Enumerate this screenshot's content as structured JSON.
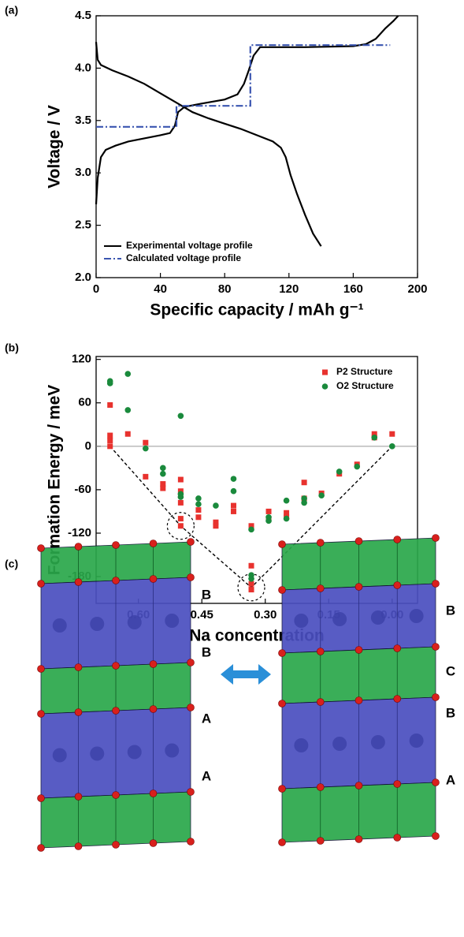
{
  "chart_data": [
    {
      "type": "line",
      "panel_label": "(a)",
      "x_label": "Specific capacity / mAh g⁻¹",
      "y_label": "Voltage / V",
      "xlim": [
        0,
        200
      ],
      "ylim": [
        2.0,
        4.5
      ],
      "xticks": [
        0,
        40,
        80,
        120,
        160,
        200
      ],
      "yticks": [
        {
          "value": 2.0,
          "label": "2.0"
        },
        2.5,
        {
          "value": 3.0,
          "label": "3.0"
        },
        3.5,
        {
          "value": 4.0,
          "label": "4.0"
        },
        4.5
      ],
      "legend": "lower left",
      "series": [
        {
          "name": "Experimental voltage profile",
          "color": "#000000",
          "linestyle": "solid",
          "x": [
            0,
            1,
            3,
            6,
            12,
            20,
            30,
            40,
            46,
            49,
            51,
            55,
            65,
            80,
            88,
            92,
            95,
            98,
            102,
            130,
            160,
            168,
            174,
            180,
            185,
            188,
            null,
            0,
            1,
            3,
            10,
            20,
            30,
            40,
            50,
            60,
            70,
            80,
            90,
            100,
            110,
            115,
            118,
            121,
            125,
            130,
            135,
            140
          ],
          "values": [
            2.7,
            2.95,
            3.15,
            3.22,
            3.26,
            3.3,
            3.33,
            3.36,
            3.38,
            3.45,
            3.58,
            3.63,
            3.66,
            3.7,
            3.75,
            3.85,
            3.98,
            4.12,
            4.2,
            4.2,
            4.21,
            4.23,
            4.28,
            4.38,
            4.45,
            4.5,
            null,
            4.25,
            4.08,
            4.03,
            3.98,
            3.92,
            3.85,
            3.76,
            3.67,
            3.58,
            3.52,
            3.47,
            3.42,
            3.36,
            3.3,
            3.24,
            3.15,
            2.98,
            2.8,
            2.6,
            2.42,
            2.3
          ]
        },
        {
          "name": "Calculated voltage profile",
          "color": "#3a55b0",
          "linestyle": "dashdot",
          "x": [
            0,
            50,
            50,
            96,
            96,
            183
          ],
          "values": [
            3.44,
            3.44,
            3.64,
            3.64,
            4.22,
            4.22
          ]
        }
      ]
    },
    {
      "type": "scatter",
      "panel_label": "(b)",
      "x_label": "Na concentration",
      "y_label": "Formation Energy / meV",
      "xlim": [
        0.7,
        -0.06
      ],
      "ylim": [
        -217,
        124
      ],
      "xticks": [
        {
          "value": 0.6,
          "label": "0.60"
        },
        0.45,
        {
          "value": 0.3,
          "label": "0.30"
        },
        0.15,
        {
          "value": 0,
          "label": "0.00"
        }
      ],
      "yticks": [
        120,
        60,
        0,
        -60,
        -120,
        -180
      ],
      "zero_line": 0,
      "legend": "upper right",
      "hull": {
        "x": [
          0.667,
          0.5,
          0.333,
          0
        ],
        "values": [
          0,
          -110,
          -195,
          0
        ]
      },
      "highlights": {
        "x": [
          0.5,
          0.333
        ],
        "values": [
          -110,
          -195
        ]
      },
      "series": [
        {
          "name": "P2 Structure",
          "color": "#e8322e",
          "marker": "square",
          "x": [
            0.667,
            0.667,
            0.667,
            0.667,
            0.625,
            0.583,
            0.583,
            0.542,
            0.542,
            0.5,
            0.5,
            0.5,
            0.5,
            0.5,
            0.458,
            0.458,
            0.417,
            0.417,
            0.375,
            0.375,
            0.333,
            0.333,
            0.333,
            0.333,
            0.292,
            0.292,
            0.25,
            0.25,
            0.208,
            0.208,
            0.167,
            0.125,
            0.083,
            0.042,
            0.042,
            0
          ],
          "values": [
            57,
            15,
            8,
            0,
            17,
            5,
            -42,
            -52,
            -58,
            -46,
            -62,
            -78,
            -100,
            -110,
            -88,
            -98,
            -105,
            -110,
            -82,
            -90,
            -110,
            -165,
            -190,
            -198,
            -90,
            -100,
            -92,
            -98,
            -50,
            -72,
            -65,
            -38,
            -25,
            17,
            12,
            17
          ]
        },
        {
          "name": "O2 Structure",
          "color": "#1a8a3c",
          "marker": "circle",
          "x": [
            0.667,
            0.667,
            0.625,
            0.625,
            0.583,
            0.542,
            0.542,
            0.5,
            0.5,
            0.5,
            0.458,
            0.458,
            0.417,
            0.375,
            0.375,
            0.333,
            0.333,
            0.333,
            0.292,
            0.292,
            0.25,
            0.25,
            0.208,
            0.208,
            0.167,
            0.125,
            0.083,
            0.042,
            0
          ],
          "values": [
            90,
            87,
            100,
            50,
            -3,
            -30,
            -38,
            42,
            -66,
            -70,
            -72,
            -80,
            -82,
            -45,
            -62,
            -115,
            -178,
            -183,
            -98,
            -103,
            -75,
            -100,
            -72,
            -78,
            -68,
            -35,
            -28,
            12,
            0
          ]
        }
      ]
    }
  ],
  "structure": {
    "panel_label": "(c)",
    "left_labels": [
      "B",
      "B",
      "A",
      "A"
    ],
    "right_labels": [
      "B",
      "C",
      "B",
      "A"
    ]
  }
}
